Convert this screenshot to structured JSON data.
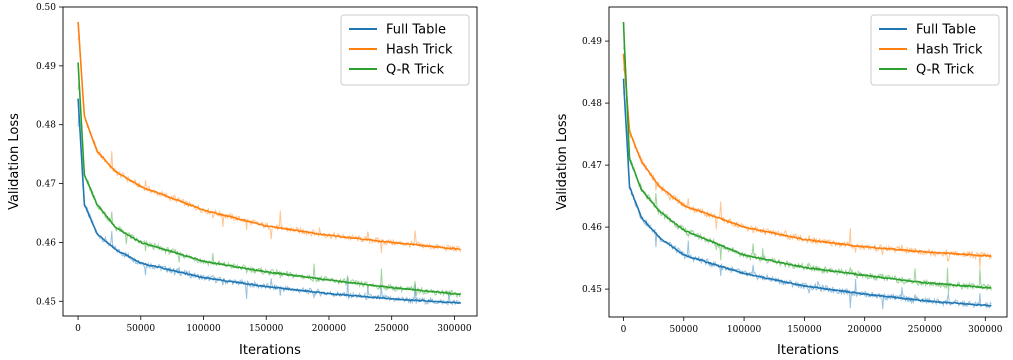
{
  "chart_data": [
    {
      "type": "line",
      "xlabel": "Iterations",
      "ylabel": "Validation Loss",
      "xlim": [
        -12000,
        318000
      ],
      "ylim": [
        0.4475,
        0.5
      ],
      "xticks": [
        0,
        50000,
        100000,
        150000,
        200000,
        250000,
        300000
      ],
      "yticks": [
        0.45,
        0.46,
        0.47,
        0.48,
        0.49,
        0.5
      ],
      "yticklabels": [
        "0.45",
        "0.46",
        "0.47",
        "0.48",
        "0.49",
        "0.50"
      ],
      "legend_position": "top-right",
      "grid": false,
      "series": [
        {
          "name": "Full Table",
          "color": "#1f77b4",
          "x": [
            0,
            5000,
            15000,
            30000,
            50000,
            100000,
            150000,
            200000,
            250000,
            305000
          ],
          "y": [
            0.4845,
            0.4665,
            0.4615,
            0.4588,
            0.4565,
            0.454,
            0.4525,
            0.4513,
            0.4504,
            0.4497
          ]
        },
        {
          "name": "Hash Trick",
          "color": "#ff7f0e",
          "x": [
            0,
            5000,
            15000,
            30000,
            50000,
            100000,
            150000,
            200000,
            250000,
            305000
          ],
          "y": [
            0.4975,
            0.4815,
            0.4755,
            0.472,
            0.4695,
            0.4655,
            0.4628,
            0.4612,
            0.46,
            0.4588
          ]
        },
        {
          "name": "Q-R Trick",
          "color": "#2ca02c",
          "x": [
            0,
            5000,
            15000,
            30000,
            50000,
            100000,
            150000,
            200000,
            250000,
            305000
          ],
          "y": [
            0.4905,
            0.4715,
            0.4665,
            0.4625,
            0.46,
            0.4568,
            0.455,
            0.4536,
            0.4523,
            0.4512
          ]
        }
      ]
    },
    {
      "type": "line",
      "xlabel": "Iterations",
      "ylabel": "Validation Loss",
      "xlim": [
        -12000,
        318000
      ],
      "ylim": [
        0.4455,
        0.4955
      ],
      "xticks": [
        0,
        50000,
        100000,
        150000,
        200000,
        250000,
        300000
      ],
      "yticks": [
        0.45,
        0.46,
        0.47,
        0.48,
        0.49
      ],
      "yticklabels": [
        "0.45",
        "0.46",
        "0.47",
        "0.48",
        "0.49"
      ],
      "legend_position": "top-right",
      "grid": false,
      "series": [
        {
          "name": "Full Table",
          "color": "#1f77b4",
          "x": [
            0,
            5000,
            15000,
            30000,
            50000,
            100000,
            150000,
            200000,
            250000,
            305000
          ],
          "y": [
            0.484,
            0.4665,
            0.4615,
            0.4583,
            0.4555,
            0.4525,
            0.4505,
            0.4492,
            0.4481,
            0.4473
          ]
        },
        {
          "name": "Hash Trick",
          "color": "#ff7f0e",
          "x": [
            0,
            5000,
            15000,
            30000,
            50000,
            100000,
            150000,
            200000,
            250000,
            305000
          ],
          "y": [
            0.488,
            0.4755,
            0.4705,
            0.4665,
            0.4635,
            0.46,
            0.458,
            0.4568,
            0.456,
            0.4553
          ]
        },
        {
          "name": "Q-R Trick",
          "color": "#2ca02c",
          "x": [
            0,
            5000,
            15000,
            30000,
            50000,
            100000,
            150000,
            200000,
            250000,
            305000
          ],
          "y": [
            0.493,
            0.471,
            0.466,
            0.4625,
            0.4595,
            0.4555,
            0.4535,
            0.4522,
            0.451,
            0.4502
          ]
        }
      ]
    }
  ]
}
